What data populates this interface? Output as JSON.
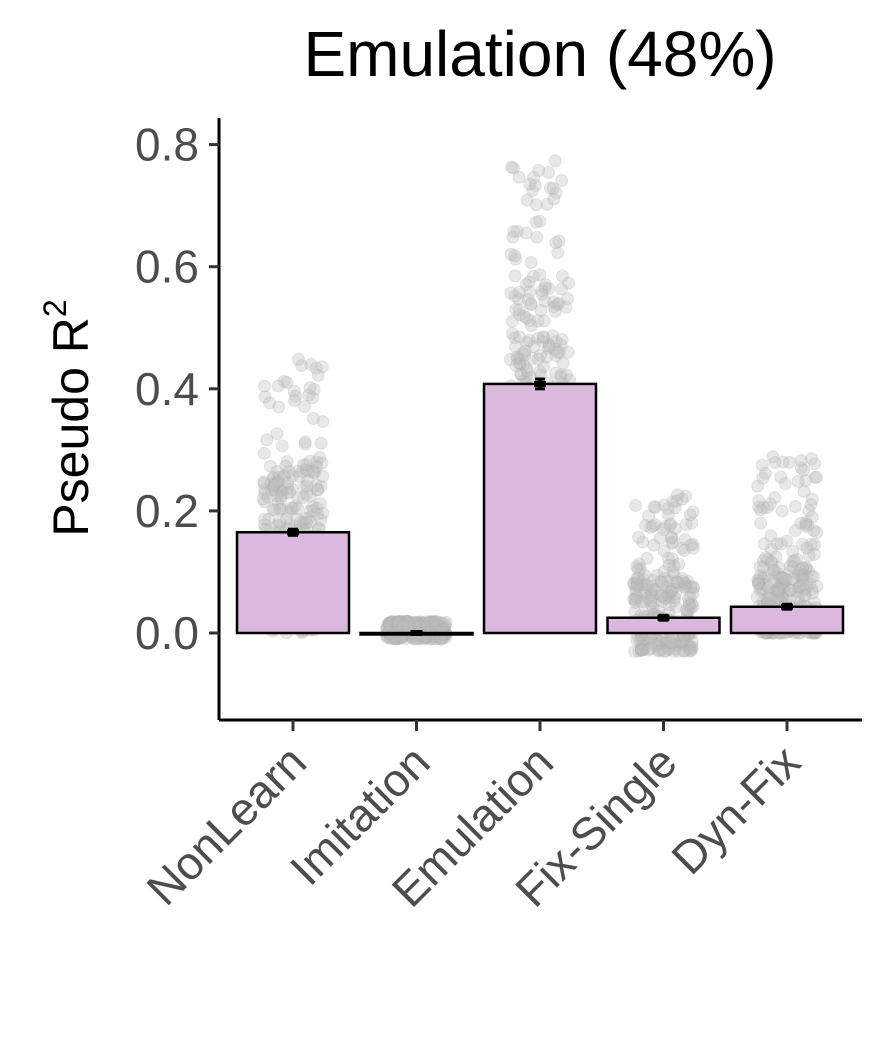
{
  "chart_data": {
    "type": "bar",
    "title": "Emulation (48%)",
    "ylabel": "Pseudo R",
    "ylabel_superscript": "2",
    "categories": [
      "NonLearn",
      "Imitation",
      "Emulation",
      "Fix-Single",
      "Dyn-Fix"
    ],
    "values": [
      0.165,
      0.0,
      0.408,
      0.025,
      0.043
    ],
    "error_margin": [
      0.005,
      0.001,
      0.008,
      0.004,
      0.004
    ],
    "ylim": [
      -0.14,
      0.83
    ],
    "yticks": [
      0.0,
      0.2,
      0.4,
      0.6,
      0.8
    ],
    "ytick_labels": [
      "0.0",
      "0.2",
      "0.4",
      "0.6",
      "0.8"
    ],
    "individual_points": {
      "description_only": false,
      "ranges": [
        [
          0.0,
          0.47
        ],
        [
          -0.01,
          0.02
        ],
        [
          0.04,
          0.78
        ],
        [
          -0.03,
          0.23
        ],
        [
          0.0,
          0.29
        ]
      ]
    },
    "grid": false,
    "legend": "none"
  },
  "colors": {
    "bar_fill": "#dbb8de",
    "bar_edge": "#000000",
    "points": "#bdbdbd",
    "axis": "#000000",
    "tick_labels": "#4d4d4d"
  }
}
